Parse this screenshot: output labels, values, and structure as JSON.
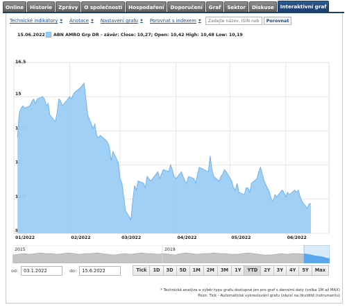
{
  "tabs": [
    {
      "label": "Online"
    },
    {
      "label": "Historie"
    },
    {
      "label": "Zprávy"
    },
    {
      "label": "O společnosti"
    },
    {
      "label": "Hospodaření"
    },
    {
      "label": "Doporučení"
    },
    {
      "label": "Graf"
    },
    {
      "label": "Sektor"
    },
    {
      "label": "Diskuse"
    },
    {
      "label": "Interaktivní graf"
    }
  ],
  "toolbar": {
    "indicators_label": "Technické indikátory",
    "annotations_label": "Anotace",
    "settings_label": "Nastavení grafu",
    "compare_index_label": "Porovnat s indexem",
    "search_placeholder": "Zadejte název, ISIN nebo",
    "compare_button": "Porovnat"
  },
  "legend": {
    "date": "15.06.2022",
    "text": "ABN AMRO Grp DR - závěr: Close: 10,27; Open: 10,42 High: 10,48 Low: 10,19"
  },
  "chart_data": {
    "type": "area",
    "series": [
      {
        "name": "ABN AMRO Grp DR"
      }
    ],
    "ylim": [
      9,
      16.5
    ],
    "y_ticks": [
      "16.5",
      "15",
      "13.5",
      "12",
      "10.5",
      "9"
    ],
    "x_tick_labels": [
      "01/2022",
      "02/2022",
      "03/2022",
      "04/2022",
      "05/2022",
      "06/2022"
    ],
    "points": [
      [
        "2022-01-03",
        13.2
      ],
      [
        "2022-01-04",
        14.3
      ],
      [
        "2022-01-05",
        14.5
      ],
      [
        "2022-01-06",
        14.6
      ],
      [
        "2022-01-07",
        14.5
      ],
      [
        "2022-01-10",
        14.6
      ],
      [
        "2022-01-11",
        14.8
      ],
      [
        "2022-01-12",
        14.9
      ],
      [
        "2022-01-13",
        14.7
      ],
      [
        "2022-01-14",
        14.9
      ],
      [
        "2022-01-17",
        15.0
      ],
      [
        "2022-01-18",
        14.9
      ],
      [
        "2022-01-19",
        14.6
      ],
      [
        "2022-01-20",
        14.7
      ],
      [
        "2022-01-21",
        14.2
      ],
      [
        "2022-01-24",
        13.9
      ],
      [
        "2022-01-25",
        14.3
      ],
      [
        "2022-01-26",
        14.9
      ],
      [
        "2022-01-27",
        14.8
      ],
      [
        "2022-01-28",
        14.6
      ],
      [
        "2022-01-31",
        14.9
      ],
      [
        "2022-02-01",
        15.0
      ],
      [
        "2022-02-02",
        14.9
      ],
      [
        "2022-02-03",
        15.1
      ],
      [
        "2022-02-04",
        15.2
      ],
      [
        "2022-02-07",
        15.4
      ],
      [
        "2022-02-08",
        15.5
      ],
      [
        "2022-02-09",
        15.6
      ],
      [
        "2022-02-10",
        14.9
      ],
      [
        "2022-02-11",
        14.2
      ],
      [
        "2022-02-14",
        13.6
      ],
      [
        "2022-02-15",
        13.8
      ],
      [
        "2022-02-16",
        13.3
      ],
      [
        "2022-02-17",
        13.2
      ],
      [
        "2022-02-18",
        13.3
      ],
      [
        "2022-02-21",
        13.1
      ],
      [
        "2022-02-22",
        13.0
      ],
      [
        "2022-02-23",
        12.8
      ],
      [
        "2022-02-24",
        12.2
      ],
      [
        "2022-02-25",
        12.6
      ],
      [
        "2022-02-28",
        12.1
      ],
      [
        "2022-03-01",
        11.4
      ],
      [
        "2022-03-02",
        11.2
      ],
      [
        "2022-03-03",
        10.6
      ],
      [
        "2022-03-04",
        10.0
      ],
      [
        "2022-03-07",
        9.6
      ],
      [
        "2022-03-08",
        10.4
      ],
      [
        "2022-03-09",
        11.1
      ],
      [
        "2022-03-10",
        10.9
      ],
      [
        "2022-03-11",
        11.3
      ],
      [
        "2022-03-14",
        11.2
      ],
      [
        "2022-03-15",
        11.0
      ],
      [
        "2022-03-16",
        11.5
      ],
      [
        "2022-03-17",
        11.4
      ],
      [
        "2022-03-18",
        11.3
      ],
      [
        "2022-03-21",
        11.6
      ],
      [
        "2022-03-22",
        11.7
      ],
      [
        "2022-03-23",
        11.4
      ],
      [
        "2022-03-24",
        11.6
      ],
      [
        "2022-03-25",
        11.8
      ],
      [
        "2022-03-28",
        11.7
      ],
      [
        "2022-03-29",
        12.0
      ],
      [
        "2022-03-30",
        11.8
      ],
      [
        "2022-03-31",
        11.5
      ],
      [
        "2022-04-01",
        11.4
      ],
      [
        "2022-04-04",
        11.7
      ],
      [
        "2022-04-05",
        11.5
      ],
      [
        "2022-04-06",
        11.3
      ],
      [
        "2022-04-07",
        11.2
      ],
      [
        "2022-04-08",
        11.5
      ],
      [
        "2022-04-11",
        11.4
      ],
      [
        "2022-04-12",
        11.2
      ],
      [
        "2022-04-13",
        11.6
      ],
      [
        "2022-04-14",
        11.9
      ],
      [
        "2022-04-19",
        11.7
      ],
      [
        "2022-04-20",
        12.4
      ],
      [
        "2022-04-21",
        11.8
      ],
      [
        "2022-04-22",
        11.5
      ],
      [
        "2022-04-25",
        11.3
      ],
      [
        "2022-04-26",
        11.5
      ],
      [
        "2022-04-27",
        11.6
      ],
      [
        "2022-04-28",
        11.8
      ],
      [
        "2022-04-29",
        11.7
      ],
      [
        "2022-05-02",
        11.3
      ],
      [
        "2022-05-03",
        11.0
      ],
      [
        "2022-05-04",
        10.9
      ],
      [
        "2022-05-05",
        11.2
      ],
      [
        "2022-05-06",
        10.8
      ],
      [
        "2022-05-09",
        10.7
      ],
      [
        "2022-05-10",
        11.0
      ],
      [
        "2022-05-11",
        11.0
      ],
      [
        "2022-05-12",
        10.8
      ],
      [
        "2022-05-13",
        11.2
      ],
      [
        "2022-05-16",
        11.4
      ],
      [
        "2022-05-17",
        11.7
      ],
      [
        "2022-05-18",
        11.9
      ],
      [
        "2022-05-19",
        11.6
      ],
      [
        "2022-05-20",
        11.3
      ],
      [
        "2022-05-23",
        10.8
      ],
      [
        "2022-05-24",
        10.5
      ],
      [
        "2022-05-25",
        10.4
      ],
      [
        "2022-05-26",
        10.7
      ],
      [
        "2022-05-27",
        10.6
      ],
      [
        "2022-05-30",
        10.9
      ],
      [
        "2022-05-31",
        10.8
      ],
      [
        "2022-06-01",
        10.6
      ],
      [
        "2022-06-02",
        10.8
      ],
      [
        "2022-06-03",
        10.7
      ],
      [
        "2022-06-06",
        10.9
      ],
      [
        "2022-06-07",
        10.8
      ],
      [
        "2022-06-08",
        10.9
      ],
      [
        "2022-06-09",
        10.6
      ],
      [
        "2022-06-10",
        10.4
      ],
      [
        "2022-06-13",
        10.1
      ],
      [
        "2022-06-14",
        10.3
      ],
      [
        "2022-06-15",
        10.3
      ]
    ]
  },
  "navigator": {
    "labels": [
      "2015",
      "2019"
    ]
  },
  "date_range": {
    "from_label": "od:",
    "from_value": "03.1.2022",
    "to_label": "do:",
    "to_value": "15.6.2022"
  },
  "range_buttons": [
    "Tick",
    "1D",
    "3D",
    "5D",
    "1M",
    "2M",
    "3M",
    "1Y",
    "YTD",
    "2Y",
    "3Y",
    "4Y",
    "5Y",
    "Max"
  ],
  "active_range": "YTD",
  "notes": [
    "* Technická analýza a výběr typu grafu dostupné jen pro graf s denními daty (volba 1M až MAX)",
    "Pozn: Tick - Automatické vykreslování grafu (závisí na likviditě instrumentu)"
  ],
  "colors": {
    "area_fill": "#9ccdf7",
    "area_line": "#6db3ee",
    "tab_active": "#1c3e6c"
  }
}
